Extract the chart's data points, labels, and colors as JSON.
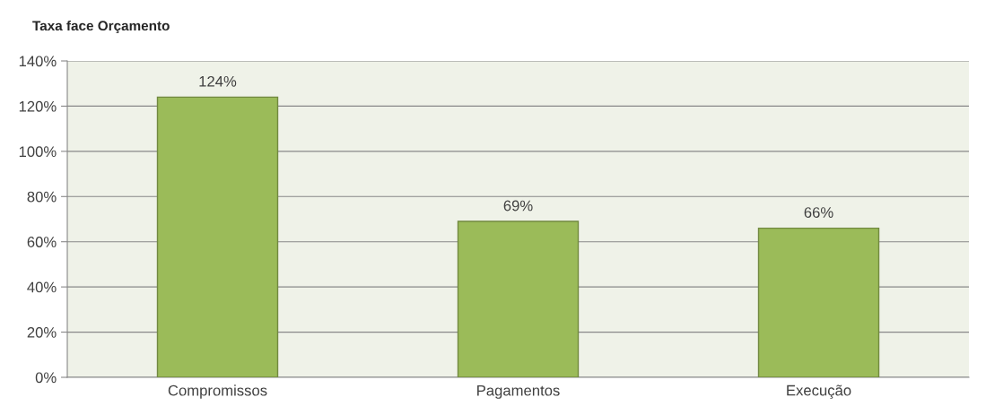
{
  "chart_data": {
    "type": "bar",
    "title": "Taxa face Orçamento",
    "categories": [
      "Compromissos",
      "Pagamentos",
      "Execução"
    ],
    "values": [
      124,
      69,
      66
    ],
    "color": "#9bbb59",
    "value_labels": [
      "124%",
      "69%",
      "66%"
    ],
    "ylim": [
      0,
      140
    ],
    "yticks": [
      {
        "value": 0,
        "label": "0%"
      },
      {
        "value": 20,
        "label": "20%"
      },
      {
        "value": 40,
        "label": "40%"
      },
      {
        "value": 60,
        "label": "60%"
      },
      {
        "value": 80,
        "label": "80%"
      },
      {
        "value": 100,
        "label": "100%"
      },
      {
        "value": 120,
        "label": "120%"
      },
      {
        "value": 140,
        "label": "140%"
      }
    ],
    "grid": "y",
    "legend": false
  }
}
